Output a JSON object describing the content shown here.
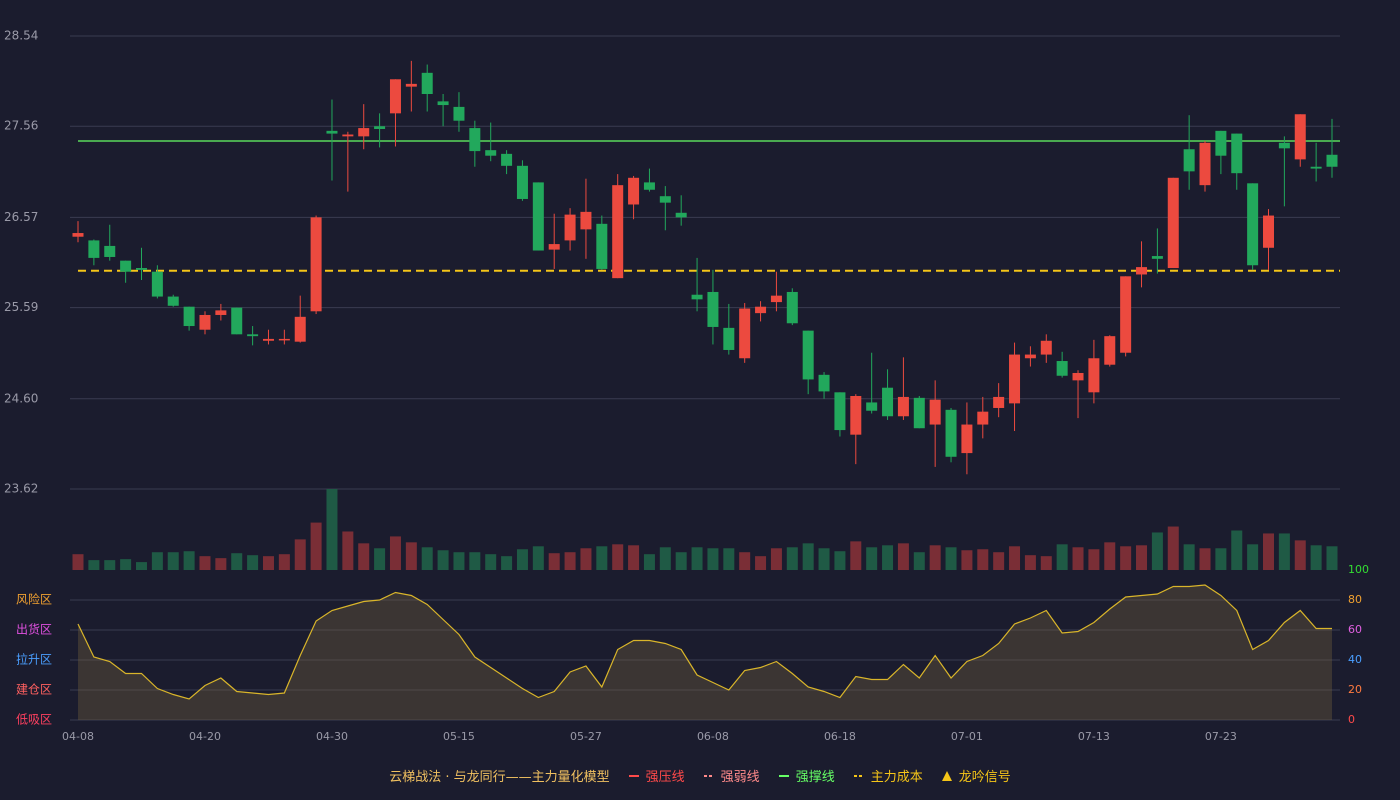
{
  "chart_data": {
    "type": "candlestick",
    "categories": [
      "04-08",
      null,
      null,
      null,
      null,
      null,
      null,
      null,
      "04-20",
      null,
      null,
      null,
      null,
      null,
      null,
      null,
      "04-30",
      null,
      null,
      null,
      null,
      null,
      null,
      null,
      "05-15",
      null,
      null,
      null,
      null,
      null,
      null,
      null,
      "05-27",
      null,
      null,
      null,
      null,
      null,
      null,
      null,
      "06-08",
      null,
      null,
      null,
      null,
      null,
      null,
      null,
      "06-18",
      null,
      null,
      null,
      null,
      null,
      null,
      null,
      "07-01",
      null,
      null,
      null,
      null,
      null,
      null,
      null,
      "07-13",
      null,
      null,
      null,
      null,
      null,
      null,
      null,
      "07-23",
      null,
      null,
      null,
      null,
      null,
      null,
      null
    ],
    "open": [
      26.36,
      26.32,
      26.26,
      26.1,
      26.02,
      25.98,
      25.71,
      25.6,
      25.35,
      25.51,
      25.59,
      25.3,
      25.23,
      25.24,
      25.22,
      25.55,
      27.51,
      27.45,
      27.45,
      27.56,
      27.7,
      27.99,
      28.14,
      27.83,
      27.77,
      27.54,
      27.3,
      27.26,
      27.13,
      26.95,
      26.22,
      26.32,
      26.44,
      26.5,
      25.91,
      26.71,
      26.95,
      26.8,
      26.62,
      25.73,
      25.76,
      25.37,
      25.04,
      25.53,
      25.65,
      25.76,
      25.34,
      24.86,
      24.67,
      24.21,
      24.56,
      24.72,
      24.41,
      24.61,
      24.32,
      24.48,
      24.01,
      24.32,
      24.5,
      24.55,
      25.04,
      25.08,
      25.01,
      24.8,
      24.67,
      24.97,
      25.1,
      25.95,
      26.15,
      26.02,
      27.31,
      26.92,
      27.51,
      27.48,
      26.94,
      26.24,
      27.38,
      27.2,
      27.12,
      27.25
    ],
    "high": [
      26.53,
      26.33,
      26.49,
      26.1,
      26.24,
      26.05,
      25.73,
      25.6,
      25.55,
      25.63,
      25.59,
      25.39,
      25.35,
      25.35,
      25.72,
      26.59,
      27.85,
      27.5,
      27.8,
      27.7,
      28.07,
      28.27,
      28.23,
      27.91,
      27.93,
      27.62,
      27.6,
      27.3,
      27.19,
      26.95,
      26.61,
      26.67,
      26.99,
      26.59,
      27.04,
      27.02,
      27.1,
      26.91,
      26.81,
      26.13,
      26.0,
      25.63,
      25.64,
      25.66,
      25.98,
      25.8,
      25.34,
      24.89,
      24.67,
      24.65,
      25.1,
      24.92,
      25.05,
      24.63,
      24.8,
      24.5,
      24.56,
      24.62,
      24.77,
      25.21,
      25.17,
      25.3,
      25.11,
      24.91,
      25.24,
      25.29,
      25.93,
      26.31,
      26.45,
      27.0,
      27.68,
      27.4,
      27.51,
      27.48,
      26.94,
      26.66,
      27.45,
      27.69,
      27.38,
      27.64
    ],
    "low": [
      26.3,
      26.05,
      26.1,
      25.86,
      25.89,
      25.69,
      25.6,
      25.34,
      25.3,
      25.45,
      25.3,
      25.18,
      25.19,
      25.19,
      25.21,
      25.52,
      26.97,
      26.85,
      27.31,
      27.33,
      27.34,
      27.72,
      27.72,
      27.56,
      27.5,
      27.12,
      27.18,
      27.04,
      26.75,
      26.21,
      26.01,
      26.21,
      26.12,
      26.0,
      25.91,
      26.55,
      26.85,
      26.43,
      26.48,
      25.55,
      25.19,
      25.08,
      24.99,
      25.44,
      25.55,
      25.4,
      24.65,
      24.6,
      24.19,
      23.89,
      24.44,
      24.37,
      24.37,
      24.28,
      23.86,
      23.91,
      23.78,
      24.17,
      24.4,
      24.25,
      24.95,
      24.99,
      24.83,
      24.39,
      24.55,
      24.95,
      25.06,
      25.81,
      25.96,
      26.02,
      26.87,
      26.85,
      27.04,
      26.87,
      26.0,
      26.0,
      26.69,
      27.12,
      26.96,
      27.0
    ],
    "close": [
      26.4,
      26.13,
      26.14,
      25.98,
      26.0,
      25.71,
      25.61,
      25.39,
      25.51,
      25.56,
      25.3,
      25.28,
      25.25,
      25.25,
      25.49,
      26.57,
      27.48,
      27.47,
      27.54,
      27.53,
      28.07,
      28.02,
      27.91,
      27.79,
      27.62,
      27.29,
      27.24,
      27.13,
      26.77,
      26.21,
      26.28,
      26.6,
      26.63,
      26.01,
      26.92,
      27.0,
      26.87,
      26.73,
      26.57,
      25.68,
      25.38,
      25.13,
      25.58,
      25.6,
      25.72,
      25.42,
      24.81,
      24.68,
      24.26,
      24.63,
      24.47,
      24.41,
      24.62,
      24.28,
      24.59,
      23.97,
      24.32,
      24.46,
      24.62,
      25.08,
      25.08,
      25.23,
      24.85,
      24.88,
      25.04,
      25.28,
      25.93,
      26.03,
      26.12,
      27.0,
      27.07,
      27.38,
      27.24,
      27.05,
      26.05,
      26.59,
      27.32,
      27.69,
      27.1,
      27.12
    ],
    "up_color": "#ec4a3f",
    "down_color": "#22a85c",
    "ylim": [
      23.62,
      28.54
    ],
    "yticks": [
      23.62,
      {
        "value": 24.6,
        "label": "24.60"
      },
      25.59,
      26.57,
      27.56,
      28.54
    ],
    "grid": true,
    "volume": {
      "values": [
        16,
        10,
        10,
        11,
        8,
        18,
        18,
        19,
        14,
        12,
        17,
        15,
        14,
        16,
        31,
        48,
        82,
        39,
        27,
        22,
        34,
        28,
        23,
        20,
        18,
        18,
        16,
        14,
        21,
        24,
        17,
        18,
        22,
        24,
        26,
        25,
        16,
        23,
        18,
        23,
        22,
        22,
        18,
        14,
        22,
        23,
        27,
        22,
        19,
        29,
        23,
        25,
        27,
        18,
        25,
        23,
        20,
        21,
        18,
        24,
        15,
        14,
        26,
        23,
        21,
        28,
        24,
        25,
        38,
        44,
        26,
        22,
        22,
        40,
        26,
        37,
        37,
        30,
        25,
        24
      ],
      "up_color": "#7a2e36",
      "down_color": "#1f5a45"
    },
    "oscillator": {
      "values": [
        64,
        42,
        39,
        31,
        31,
        21,
        17,
        14,
        23,
        28,
        19,
        18,
        17,
        18,
        43,
        66,
        73,
        76,
        79,
        80,
        85,
        83,
        77,
        67,
        57,
        42,
        35,
        28,
        21,
        15,
        19,
        32,
        36,
        22,
        47,
        53,
        53,
        51,
        47,
        30,
        25,
        20,
        33,
        35,
        39,
        31,
        22,
        19,
        15,
        29,
        27,
        27,
        37,
        28,
        43,
        28,
        39,
        43,
        51,
        64,
        68,
        73,
        58,
        59,
        65,
        74,
        82,
        83,
        84,
        89,
        89,
        90,
        83,
        73,
        47,
        53,
        65,
        73,
        61,
        61
      ],
      "color": "#d9b52a",
      "ylim": [
        0,
        100
      ],
      "yticks": [
        {
          "value": 0,
          "color": "#ff4a4a"
        },
        {
          "value": 20,
          "color": "#ff7a40"
        },
        {
          "value": 40,
          "color": "#4a9eff"
        },
        {
          "value": 60,
          "color": "#e060e0"
        },
        {
          "value": 80,
          "color": "#f0a030"
        },
        {
          "value": 100,
          "color": "#33dd33"
        }
      ],
      "zones": [
        {
          "label": "风险区",
          "value": 80,
          "color": "#f0a030"
        },
        {
          "label": "出货区",
          "value": 60,
          "color": "#e050e0"
        },
        {
          "label": "拉升区",
          "value": 40,
          "color": "#4a9eff"
        },
        {
          "label": "建仓区",
          "value": 20,
          "color": "#ff6060"
        },
        {
          "label": "低吸区",
          "value": 0,
          "color": "#ff4060"
        }
      ]
    },
    "legend_title": "云梯战法 · 与龙同行——主力量化模型",
    "legend": [
      {
        "name": "强压线",
        "color": "#ff4a4a",
        "dash": false
      },
      {
        "name": "强弱线",
        "color": "#ff8a8a",
        "dash": true
      },
      {
        "name": "强撑线",
        "color": "#66ff66",
        "dash": false,
        "value": 27.4
      },
      {
        "name": "主力成本",
        "color": "#f5c518",
        "dash": true,
        "value": 25.99
      },
      {
        "name": "龙吟信号",
        "color": "#f5c518",
        "marker": "triangle"
      }
    ]
  }
}
